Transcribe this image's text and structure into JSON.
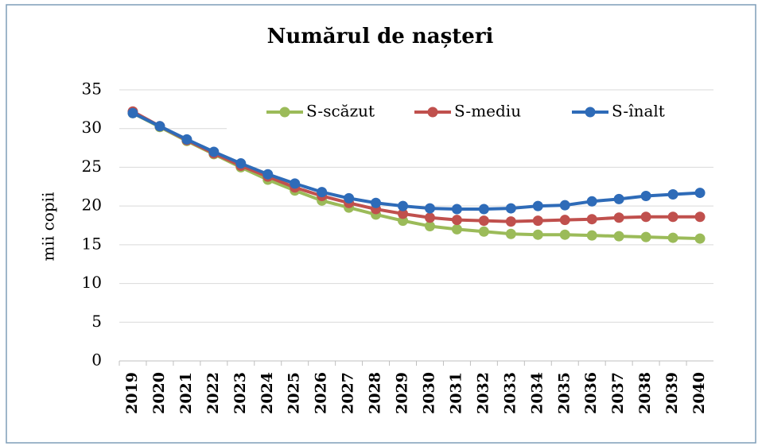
{
  "chart_data": {
    "type": "line",
    "title": "Numărul de nașteri",
    "y_label": "mii copii",
    "categories": [
      "2019",
      "2020",
      "2021",
      "2022",
      "2023",
      "2024",
      "2025",
      "2026",
      "2027",
      "2028",
      "2029",
      "2030",
      "2031",
      "2032",
      "2033",
      "2034",
      "2035",
      "2036",
      "2037",
      "2038",
      "2039",
      "2040"
    ],
    "series": [
      {
        "name": "S-scăzut",
        "color": "#9bbb59",
        "values": [
          32.0,
          30.2,
          28.4,
          26.7,
          25.0,
          23.4,
          22.0,
          20.7,
          19.8,
          18.9,
          18.1,
          17.4,
          17.0,
          16.7,
          16.4,
          16.3,
          16.3,
          16.2,
          16.1,
          16.0,
          15.9,
          15.8
        ]
      },
      {
        "name": "S-mediu",
        "color": "#c0504d",
        "values": [
          32.2,
          30.3,
          28.5,
          26.8,
          25.2,
          23.8,
          22.4,
          21.3,
          20.4,
          19.6,
          19.0,
          18.5,
          18.2,
          18.1,
          18.0,
          18.1,
          18.2,
          18.3,
          18.5,
          18.6,
          18.6,
          18.6
        ]
      },
      {
        "name": "S-înalt",
        "color": "#2e6bb8",
        "values": [
          32.0,
          30.3,
          28.6,
          27.0,
          25.5,
          24.1,
          22.9,
          21.8,
          21.0,
          20.4,
          20.0,
          19.7,
          19.6,
          19.6,
          19.7,
          20.0,
          20.1,
          20.6,
          20.9,
          21.3,
          21.5,
          21.7
        ]
      }
    ],
    "ylim": [
      0,
      35
    ],
    "yticks": [
      0,
      5,
      10,
      15,
      20,
      25,
      30,
      35
    ],
    "grid": true,
    "legend": "top"
  }
}
